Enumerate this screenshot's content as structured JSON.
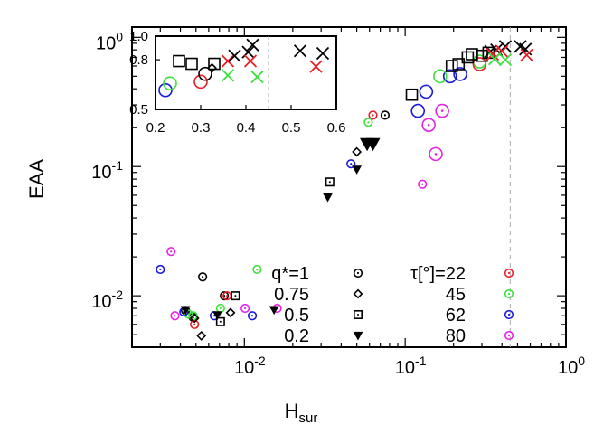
{
  "chart_data": {
    "type": "scatter",
    "x_scale": "log",
    "y_scale": "log",
    "xlim": [
      0.002,
      1.0
    ],
    "ylim": [
      0.004,
      1.2
    ],
    "xlabel": "H",
    "xlabel_sub": "sur",
    "ylabel": "EAA",
    "x_ticks": [
      {
        "value": 0.01,
        "mantissa": "10",
        "exp": "-2"
      },
      {
        "value": 0.1,
        "mantissa": "10",
        "exp": "-1"
      },
      {
        "value": 1.0,
        "mantissa": "10",
        "exp": "0"
      }
    ],
    "y_ticks": [
      {
        "value": 0.01,
        "mantissa": "10",
        "exp": "-2"
      },
      {
        "value": 0.1,
        "mantissa": "10",
        "exp": "-1"
      },
      {
        "value": 1.0,
        "mantissa": "10",
        "exp": "0"
      }
    ],
    "vline_x": 0.45,
    "colors": {
      "22": "#e8202a",
      "45": "#3ee03e",
      "62": "#1a1adc",
      "80": "#e624e6",
      "black": "#000000"
    },
    "legend_q": {
      "items": [
        {
          "label": "q*=1",
          "marker": "circle-dot"
        },
        {
          "label": "0.75",
          "marker": "diamond"
        },
        {
          "label": "0.5",
          "marker": "square-dot"
        },
        {
          "label": "0.2",
          "marker": "triangle"
        }
      ]
    },
    "legend_tau": {
      "items": [
        {
          "label": "τ[°]=22",
          "color": "22"
        },
        {
          "label": "45",
          "color": "45"
        },
        {
          "label": "62",
          "color": "62"
        },
        {
          "label": "80",
          "color": "80"
        }
      ]
    },
    "series": [
      {
        "group": "small-circles",
        "points": [
          {
            "x": 0.0055,
            "y": 0.014,
            "m": "circle-dot",
            "c": "black"
          },
          {
            "x": 0.0043,
            "y": 0.0077,
            "m": "circle-dot",
            "c": "black"
          },
          {
            "x": 0.0048,
            "y": 0.0068,
            "m": "circle-dot",
            "c": "black"
          },
          {
            "x": 0.0075,
            "y": 0.01,
            "m": "circle-dot",
            "c": "black"
          },
          {
            "x": 0.0078,
            "y": 0.01,
            "m": "circle-dot",
            "c": "22"
          },
          {
            "x": 0.0049,
            "y": 0.006,
            "m": "circle-dot",
            "c": "22"
          },
          {
            "x": 0.0045,
            "y": 0.0072,
            "m": "circle-dot",
            "c": "45"
          },
          {
            "x": 0.0071,
            "y": 0.008,
            "m": "circle-dot",
            "c": "45"
          },
          {
            "x": 0.0048,
            "y": 0.007,
            "m": "circle-dot",
            "c": "45"
          },
          {
            "x": 0.012,
            "y": 0.016,
            "m": "circle-dot",
            "c": "45"
          },
          {
            "x": 0.003,
            "y": 0.016,
            "m": "circle-dot",
            "c": "62"
          },
          {
            "x": 0.0065,
            "y": 0.007,
            "m": "circle-dot",
            "c": "62"
          },
          {
            "x": 0.0042,
            "y": 0.0075,
            "m": "circle-dot",
            "c": "62"
          },
          {
            "x": 0.0112,
            "y": 0.007,
            "m": "circle-dot",
            "c": "62"
          },
          {
            "x": 0.0035,
            "y": 0.022,
            "m": "circle-dot",
            "c": "80"
          },
          {
            "x": 0.0037,
            "y": 0.007,
            "m": "circle-dot",
            "c": "80"
          },
          {
            "x": 0.0101,
            "y": 0.008,
            "m": "circle-dot",
            "c": "80"
          },
          {
            "x": 0.016,
            "y": 0.008,
            "m": "circle-dot",
            "c": "80"
          },
          {
            "x": 0.0054,
            "y": 0.0049,
            "m": "diamond",
            "c": "black"
          },
          {
            "x": 0.0082,
            "y": 0.0074,
            "m": "diamond",
            "c": "black"
          },
          {
            "x": 0.0049,
            "y": 0.0067,
            "m": "diamond",
            "c": "black"
          },
          {
            "x": 0.0071,
            "y": 0.0063,
            "m": "square-dot",
            "c": "black"
          },
          {
            "x": 0.0088,
            "y": 0.01,
            "m": "square-dot",
            "c": "black"
          },
          {
            "x": 0.0043,
            "y": 0.0078,
            "m": "triangle",
            "c": "black"
          },
          {
            "x": 0.0068,
            "y": 0.0071,
            "m": "triangle",
            "c": "black"
          },
          {
            "x": 0.0153,
            "y": 0.0078,
            "m": "triangle",
            "c": "black"
          }
        ]
      },
      {
        "group": "mid-range",
        "points": [
          {
            "x": 0.063,
            "y": 0.25,
            "m": "circle-dot",
            "c": "22"
          },
          {
            "x": 0.075,
            "y": 0.25,
            "m": "circle-dot",
            "c": "black"
          },
          {
            "x": 0.059,
            "y": 0.22,
            "m": "circle-dot",
            "c": "45"
          },
          {
            "x": 0.046,
            "y": 0.105,
            "m": "circle-dot",
            "c": "62"
          },
          {
            "x": 0.128,
            "y": 0.073,
            "m": "circle-dot",
            "c": "80"
          },
          {
            "x": 0.05,
            "y": 0.13,
            "m": "diamond",
            "c": "black"
          },
          {
            "x": 0.034,
            "y": 0.076,
            "m": "square-dot",
            "c": "black"
          },
          {
            "x": 0.033,
            "y": 0.058,
            "m": "triangle",
            "c": "black"
          },
          {
            "x": 0.05,
            "y": 0.095,
            "m": "triangle",
            "c": "black"
          },
          {
            "x": 0.058,
            "y": 0.15,
            "m": "triangle",
            "c": "black",
            "s": 1.6
          },
          {
            "x": 0.063,
            "y": 0.15,
            "m": "triangle",
            "c": "black",
            "s": 1.6
          }
        ]
      },
      {
        "group": "large",
        "points": [
          {
            "x": 0.11,
            "y": 0.36,
            "m": "square",
            "c": "black"
          },
          {
            "x": 0.135,
            "y": 0.38,
            "m": "circle",
            "c": "62"
          },
          {
            "x": 0.12,
            "y": 0.27,
            "m": "circle",
            "c": "62"
          },
          {
            "x": 0.19,
            "y": 0.5,
            "m": "circle",
            "c": "62"
          },
          {
            "x": 0.22,
            "y": 0.52,
            "m": "circle",
            "c": "62"
          },
          {
            "x": 0.165,
            "y": 0.5,
            "m": "circle",
            "c": "45"
          },
          {
            "x": 0.29,
            "y": 0.65,
            "m": "circle",
            "c": "45"
          },
          {
            "x": 0.29,
            "y": 0.62,
            "m": "circle",
            "c": "22"
          },
          {
            "x": 0.17,
            "y": 0.27,
            "m": "circle-dot-lg",
            "c": "80"
          },
          {
            "x": 0.14,
            "y": 0.21,
            "m": "circle-dot-lg",
            "c": "80"
          },
          {
            "x": 0.155,
            "y": 0.125,
            "m": "circle-dot-lg",
            "c": "80"
          },
          {
            "x": 0.195,
            "y": 0.6,
            "m": "square",
            "c": "black"
          },
          {
            "x": 0.215,
            "y": 0.62,
            "m": "square",
            "c": "black"
          },
          {
            "x": 0.245,
            "y": 0.7,
            "m": "square",
            "c": "black"
          },
          {
            "x": 0.26,
            "y": 0.74,
            "m": "square",
            "c": "black"
          },
          {
            "x": 0.3,
            "y": 0.72,
            "m": "square",
            "c": "black"
          },
          {
            "x": 0.33,
            "y": 0.76,
            "m": "square",
            "c": "black"
          },
          {
            "x": 0.34,
            "y": 0.78,
            "m": "cross",
            "c": "black"
          },
          {
            "x": 0.37,
            "y": 0.8,
            "m": "cross",
            "c": "black"
          },
          {
            "x": 0.42,
            "y": 0.85,
            "m": "cross",
            "c": "black"
          },
          {
            "x": 0.52,
            "y": 0.85,
            "m": "cross",
            "c": "black"
          },
          {
            "x": 0.56,
            "y": 0.81,
            "m": "cross",
            "c": "black"
          },
          {
            "x": 0.35,
            "y": 0.74,
            "m": "cross",
            "c": "22"
          },
          {
            "x": 0.4,
            "y": 0.78,
            "m": "cross",
            "c": "22"
          },
          {
            "x": 0.57,
            "y": 0.73,
            "m": "cross",
            "c": "22"
          },
          {
            "x": 0.36,
            "y": 0.68,
            "m": "cross",
            "c": "45"
          },
          {
            "x": 0.42,
            "y": 0.67,
            "m": "cross",
            "c": "45"
          }
        ]
      }
    ],
    "inset": {
      "x_scale": "linear",
      "y_scale": "log",
      "xlim": [
        0.2,
        0.6
      ],
      "ylim": [
        0.5,
        1.0
      ],
      "x_ticks": [
        "0.2",
        "0.3",
        "0.4",
        "0.5",
        "0.6"
      ],
      "y_ticks": [
        "1.0",
        "0.8",
        "0.5"
      ],
      "vline_x": 0.45,
      "points": [
        {
          "x": 0.222,
          "y": 0.6,
          "m": "circle",
          "c": "62"
        },
        {
          "x": 0.232,
          "y": 0.64,
          "m": "circle",
          "c": "45"
        },
        {
          "x": 0.252,
          "y": 0.79,
          "m": "square",
          "c": "black"
        },
        {
          "x": 0.28,
          "y": 0.77,
          "m": "square",
          "c": "black"
        },
        {
          "x": 0.3,
          "y": 0.65,
          "m": "circle",
          "c": "22"
        },
        {
          "x": 0.31,
          "y": 0.7,
          "m": "circle",
          "c": "black"
        },
        {
          "x": 0.325,
          "y": 0.74,
          "m": "diamond",
          "c": "black"
        },
        {
          "x": 0.33,
          "y": 0.77,
          "m": "square",
          "c": "black"
        },
        {
          "x": 0.36,
          "y": 0.79,
          "m": "cross",
          "c": "22"
        },
        {
          "x": 0.375,
          "y": 0.83,
          "m": "cross",
          "c": "black"
        },
        {
          "x": 0.405,
          "y": 0.86,
          "m": "cross",
          "c": "black"
        },
        {
          "x": 0.415,
          "y": 0.92,
          "m": "cross",
          "c": "black"
        },
        {
          "x": 0.41,
          "y": 0.79,
          "m": "cross",
          "c": "22"
        },
        {
          "x": 0.36,
          "y": 0.69,
          "m": "cross",
          "c": "45"
        },
        {
          "x": 0.425,
          "y": 0.68,
          "m": "cross",
          "c": "45"
        },
        {
          "x": 0.52,
          "y": 0.87,
          "m": "cross",
          "c": "black"
        },
        {
          "x": 0.57,
          "y": 0.85,
          "m": "cross",
          "c": "black"
        },
        {
          "x": 0.555,
          "y": 0.75,
          "m": "cross",
          "c": "22"
        }
      ]
    }
  }
}
